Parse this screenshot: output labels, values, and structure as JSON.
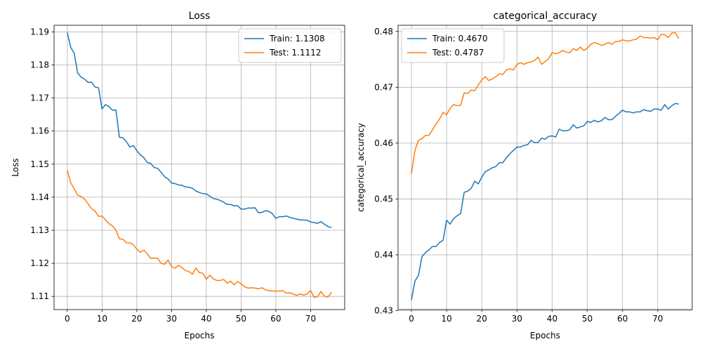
{
  "chart_data": [
    {
      "type": "line",
      "title": "Loss",
      "xlabel": "Epochs",
      "ylabel": "Loss",
      "xlim": [
        -3.8,
        79.8
      ],
      "ylim": [
        1.106,
        1.192
      ],
      "xticks": [
        "0",
        "10",
        "20",
        "30",
        "40",
        "50",
        "60",
        "70"
      ],
      "yticks": [
        "1.11",
        "1.12",
        "1.13",
        "1.14",
        "1.15",
        "1.16",
        "1.17",
        "1.18",
        "1.19"
      ],
      "grid": true,
      "legend_position": "top-right",
      "series": [
        {
          "name": "Train: 1.1308",
          "color": "#1f77b4",
          "values": [
            1.1898,
            1.1853,
            1.1835,
            1.1775,
            1.1763,
            1.1757,
            1.1747,
            1.1748,
            1.1733,
            1.1731,
            1.1667,
            1.168,
            1.1674,
            1.1663,
            1.1664,
            1.1581,
            1.158,
            1.1568,
            1.1552,
            1.1556,
            1.1541,
            1.1528,
            1.152,
            1.1505,
            1.1502,
            1.149,
            1.1487,
            1.1475,
            1.1462,
            1.1455,
            1.1443,
            1.1441,
            1.1437,
            1.1436,
            1.1431,
            1.143,
            1.1427,
            1.1419,
            1.1414,
            1.1411,
            1.141,
            1.1403,
            1.1396,
            1.1394,
            1.139,
            1.1385,
            1.1378,
            1.1378,
            1.1374,
            1.1374,
            1.1364,
            1.1364,
            1.1367,
            1.1367,
            1.1368,
            1.1353,
            1.1354,
            1.1359,
            1.1357,
            1.135,
            1.1336,
            1.1341,
            1.1341,
            1.1343,
            1.1339,
            1.1336,
            1.1334,
            1.1331,
            1.1331,
            1.133,
            1.1325,
            1.1323,
            1.1321,
            1.1326,
            1.1318,
            1.1311,
            1.1308
          ]
        },
        {
          "name": "Test: 1.1112",
          "color": "#ff7f0e",
          "values": [
            1.1482,
            1.1443,
            1.1426,
            1.1406,
            1.1402,
            1.1394,
            1.138,
            1.1365,
            1.1358,
            1.1342,
            1.1343,
            1.1331,
            1.132,
            1.1313,
            1.13,
            1.1274,
            1.1273,
            1.1262,
            1.1262,
            1.1256,
            1.1243,
            1.1233,
            1.124,
            1.1229,
            1.1215,
            1.1216,
            1.1215,
            1.12,
            1.1197,
            1.121,
            1.119,
            1.1185,
            1.1194,
            1.1187,
            1.1178,
            1.1175,
            1.1167,
            1.1186,
            1.1172,
            1.117,
            1.1152,
            1.1164,
            1.1153,
            1.1148,
            1.1148,
            1.1151,
            1.114,
            1.1146,
            1.1135,
            1.1145,
            1.1138,
            1.1129,
            1.1125,
            1.1126,
            1.1125,
            1.1123,
            1.1126,
            1.112,
            1.1117,
            1.1116,
            1.1116,
            1.1116,
            1.1117,
            1.111,
            1.1111,
            1.1107,
            1.1103,
            1.1107,
            1.1104,
            1.1107,
            1.1118,
            1.1097,
            1.1099,
            1.1115,
            1.11,
            1.1098,
            1.1112
          ]
        }
      ]
    },
    {
      "type": "line",
      "title": "categorical_accuracy",
      "xlabel": "Epochs",
      "ylabel": "categorical_accuracy",
      "xlim": [
        -3.8,
        79.8
      ],
      "ylim": [
        0.4302,
        0.4811
      ],
      "xticks": [
        "0",
        "10",
        "20",
        "30",
        "40",
        "50",
        "60",
        "70"
      ],
      "yticks": [
        "0.43",
        "0.44",
        "0.45",
        "0.46",
        "0.47",
        "0.48"
      ],
      "grid": true,
      "legend_position": "top-left",
      "series": [
        {
          "name": "Train: 0.4670",
          "color": "#1f77b4",
          "values": [
            0.4319,
            0.4353,
            0.4363,
            0.4397,
            0.4404,
            0.4409,
            0.4415,
            0.4415,
            0.4422,
            0.4426,
            0.4462,
            0.4455,
            0.4465,
            0.447,
            0.4474,
            0.4512,
            0.4514,
            0.4519,
            0.4532,
            0.4527,
            0.4539,
            0.4549,
            0.4552,
            0.4556,
            0.4558,
            0.4565,
            0.4565,
            0.4574,
            0.4581,
            0.4587,
            0.4593,
            0.4593,
            0.4596,
            0.4597,
            0.4605,
            0.4601,
            0.4601,
            0.4609,
            0.4607,
            0.4612,
            0.4613,
            0.4611,
            0.4625,
            0.4622,
            0.4622,
            0.4624,
            0.4633,
            0.4627,
            0.4629,
            0.4631,
            0.4639,
            0.4637,
            0.4641,
            0.4638,
            0.464,
            0.4646,
            0.4642,
            0.4642,
            0.4648,
            0.4653,
            0.4659,
            0.4656,
            0.4656,
            0.4654,
            0.4656,
            0.4656,
            0.466,
            0.4658,
            0.4657,
            0.4661,
            0.4661,
            0.4659,
            0.4669,
            0.4661,
            0.4667,
            0.4671,
            0.467
          ]
        },
        {
          "name": "Test: 0.4787",
          "color": "#ff7f0e",
          "values": [
            0.4545,
            0.4587,
            0.4605,
            0.4608,
            0.4614,
            0.4614,
            0.4624,
            0.4634,
            0.4643,
            0.4655,
            0.4651,
            0.4662,
            0.4669,
            0.4667,
            0.4668,
            0.469,
            0.4689,
            0.4695,
            0.4694,
            0.4704,
            0.4713,
            0.4719,
            0.4712,
            0.4715,
            0.4719,
            0.4724,
            0.4723,
            0.4731,
            0.4733,
            0.4731,
            0.4741,
            0.4744,
            0.4741,
            0.4744,
            0.4745,
            0.4748,
            0.4754,
            0.4741,
            0.4746,
            0.4751,
            0.4762,
            0.476,
            0.4762,
            0.4766,
            0.4763,
            0.4762,
            0.4769,
            0.4766,
            0.4772,
            0.4766,
            0.477,
            0.4777,
            0.478,
            0.4778,
            0.4775,
            0.4777,
            0.478,
            0.4777,
            0.4782,
            0.4782,
            0.4785,
            0.4783,
            0.4783,
            0.4785,
            0.4786,
            0.4792,
            0.4789,
            0.4789,
            0.4788,
            0.4789,
            0.4785,
            0.4795,
            0.4794,
            0.4789,
            0.4797,
            0.4798,
            0.4787
          ]
        }
      ]
    }
  ]
}
